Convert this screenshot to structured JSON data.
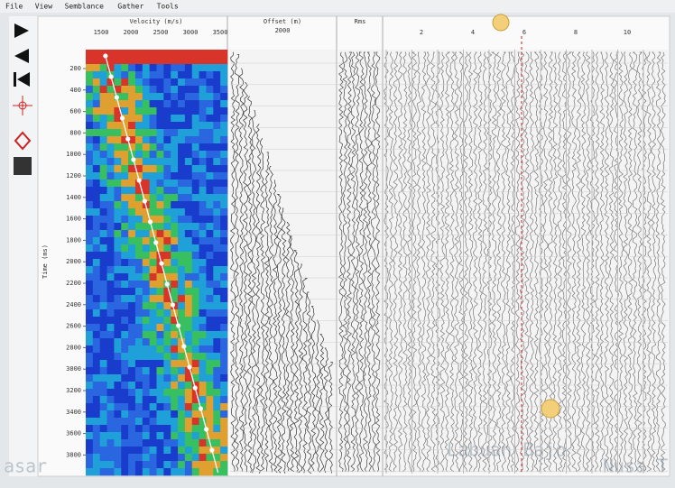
{
  "menu": [
    "File",
    "View",
    "Semblance",
    "Gather",
    "Tools"
  ],
  "panels": {
    "velocity": {
      "title": "Velocity (m/s)",
      "ticks": [
        "1500",
        "2000",
        "2500",
        "3000",
        "3500"
      ]
    },
    "offset": {
      "title": "Offset (m)",
      "ticks": [
        "2000"
      ]
    },
    "rms": {
      "title": "Rms"
    },
    "gather": {
      "ticks": [
        "2",
        "4",
        "6",
        "8",
        "10"
      ]
    }
  },
  "time_axis": {
    "label": "Time (ms)",
    "ticks": [
      "200",
      "400",
      "600",
      "800",
      "1000",
      "1200",
      "1400",
      "1600",
      "1800",
      "2000",
      "2200",
      "2400",
      "2600",
      "2800",
      "3000",
      "3200",
      "3400",
      "3600",
      "3800"
    ]
  },
  "map_labels": [
    "asar",
    "Labuan Bajo",
    "Nusa T"
  ]
}
